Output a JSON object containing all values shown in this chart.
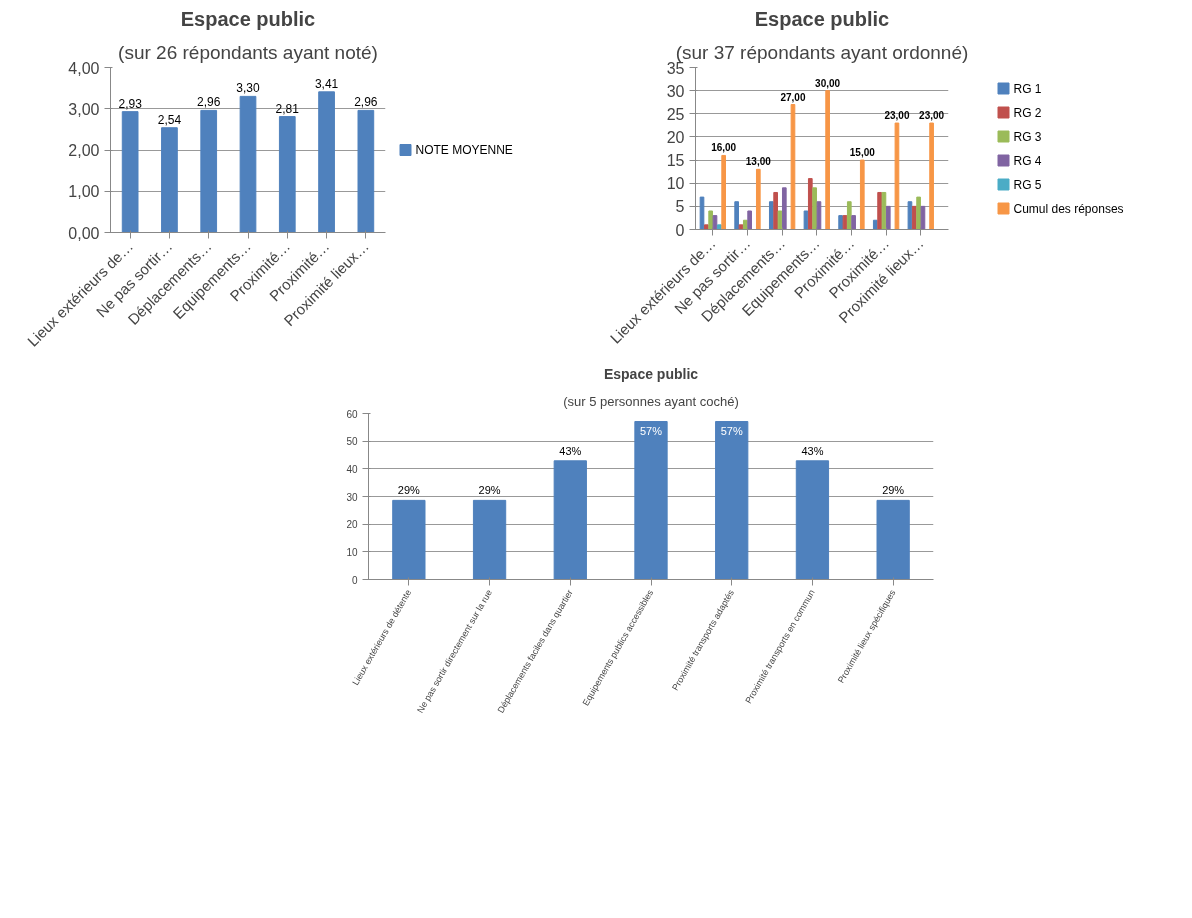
{
  "chart_data": [
    {
      "type": "bar",
      "title": "Espace public",
      "subtitle": "(sur 26 répondants ayant noté)",
      "categories": [
        "Lieux extérieurs de…",
        "Ne pas sortir…",
        "Déplacements…",
        "Equipements…",
        "Proximité…",
        "Proximité…",
        "Proximité lieux…"
      ],
      "series": [
        {
          "name": "NOTE MOYENNE",
          "color": "#4f81bd",
          "values": [
            2.93,
            2.54,
            2.96,
            3.3,
            2.81,
            3.41,
            2.96
          ],
          "value_labels": [
            "2,93",
            "2,54",
            "2,96",
            "3,30",
            "2,81",
            "3,41",
            "2,96"
          ]
        }
      ],
      "ylim": [
        0,
        4
      ],
      "yticks": [
        {
          "value": 0,
          "label": "0,00"
        },
        {
          "value": 1,
          "label": "1,00"
        },
        {
          "value": 2,
          "label": "2,00"
        },
        {
          "value": 3,
          "label": "3,00"
        },
        {
          "value": 4,
          "label": "4,00"
        }
      ],
      "grid": "y",
      "legend": "right"
    },
    {
      "type": "bar",
      "title": "Espace public",
      "subtitle": "(sur 37 répondants ayant ordonné)",
      "categories": [
        "Lieux extérieurs de…",
        "Ne pas sortir…",
        "Déplacements…",
        "Equipements…",
        "Proximité…",
        "Proximité…",
        "Proximité lieux…"
      ],
      "series": [
        {
          "name": "RG 1",
          "color": "#4f81bd",
          "values": [
            7,
            6,
            6,
            4,
            3,
            2,
            6
          ]
        },
        {
          "name": "RG 2",
          "color": "#c0504d",
          "values": [
            1,
            1,
            8,
            11,
            3,
            8,
            5
          ]
        },
        {
          "name": "RG 3",
          "color": "#9bbb59",
          "values": [
            4,
            2,
            4,
            9,
            6,
            8,
            7
          ]
        },
        {
          "name": "RG 4",
          "color": "#8064a2",
          "values": [
            3,
            4,
            9,
            6,
            3,
            5,
            5
          ]
        },
        {
          "name": "RG 5",
          "color": "#4bacc6",
          "values": [
            1,
            0,
            0,
            0,
            0,
            0,
            0
          ]
        },
        {
          "name": "Cumul des réponses",
          "color": "#f79646",
          "values": [
            16,
            13,
            27,
            30,
            15,
            23,
            23
          ],
          "value_labels": [
            "16,00",
            "13,00",
            "27,00",
            "30,00",
            "15,00",
            "23,00",
            "23,00"
          ]
        }
      ],
      "ylim": [
        0,
        35
      ],
      "yticks": [
        0,
        5,
        10,
        15,
        20,
        25,
        30,
        35
      ],
      "grid": "y",
      "legend": "right"
    },
    {
      "type": "bar",
      "title": "Espace public",
      "subtitle": "(sur 5 personnes ayant coché)",
      "categories": [
        "Lieux extérieurs de détente",
        "Ne pas sortir directement sur la rue",
        "Déplacements faciles dans quartier",
        "Equipements publics accessibles",
        "Proximité transports adaptés",
        "Proximité transports en commun",
        "Proximité lieux spécifiques"
      ],
      "series": [
        {
          "color": "#4f81bd",
          "values": [
            28.6,
            28.6,
            42.9,
            57.1,
            57.1,
            42.9,
            28.6
          ],
          "value_labels": [
            "29%",
            "29%",
            "43%",
            "57%",
            "57%",
            "43%",
            "29%"
          ]
        }
      ],
      "ylim": [
        0,
        60
      ],
      "yticks": [
        0,
        10,
        20,
        30,
        40,
        50,
        60
      ],
      "grid": "y"
    }
  ]
}
